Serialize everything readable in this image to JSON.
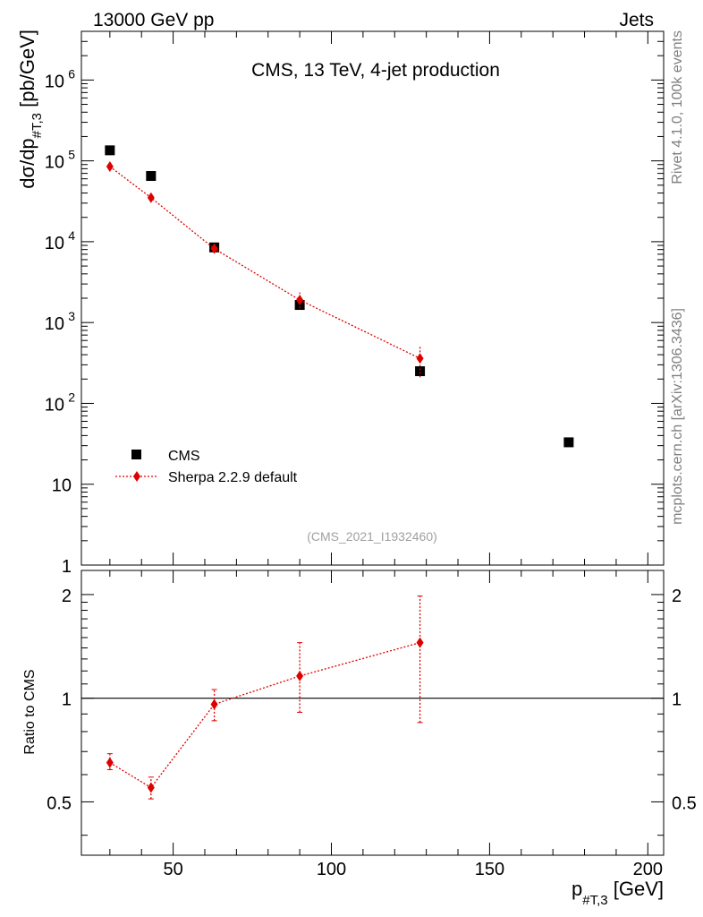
{
  "header": {
    "left": "13000 GeV pp",
    "right": "Jets"
  },
  "side_text": {
    "rivet": "Rivet 4.1.0,  100k events",
    "mcplots": "mcplots.cern.ch [arXiv:1306.3436]"
  },
  "chart_data": {
    "type": "scatter",
    "title": "CMS, 13 TeV, 4-jet production",
    "analysis_tag": "(CMS_2021_I1932460)",
    "xlabel": "p",
    "xlabel_sub": "#T,3",
    "xlabel_unit": "[GeV]",
    "ylabel": "dσ/dp",
    "ylabel_sub": "#T,3",
    "ylabel_unit": "[pb/GeV]",
    "ratio_ylabel": "Ratio to CMS",
    "xlim": [
      21,
      205
    ],
    "ylim": [
      1,
      4000000
    ],
    "ratio_ylim": [
      0.35,
      2.35
    ],
    "x_ticks": [
      50,
      100,
      150,
      200
    ],
    "x_tick_labels": [
      "50",
      "100",
      "150",
      "200"
    ],
    "y_tick_labels": [
      {
        "value": 1,
        "mantissa": "1",
        "exp": ""
      },
      {
        "value": 10,
        "mantissa": "10",
        "exp": ""
      },
      {
        "value": 100,
        "mantissa": "10",
        "exp": "2"
      },
      {
        "value": 1000,
        "mantissa": "10",
        "exp": "3"
      },
      {
        "value": 10000,
        "mantissa": "10",
        "exp": "4"
      },
      {
        "value": 100000,
        "mantissa": "10",
        "exp": "5"
      },
      {
        "value": 1000000,
        "mantissa": "10",
        "exp": "6"
      }
    ],
    "ratio_ticks": [
      {
        "value": 0.5,
        "label": "0.5"
      },
      {
        "value": 1,
        "label": "1"
      },
      {
        "value": 2,
        "label": "2"
      }
    ],
    "legend": [
      {
        "name": "CMS",
        "marker": "square",
        "color": "#000000"
      },
      {
        "name": "Sherpa 2.2.9 default",
        "marker": "diamond",
        "color": "#e00000"
      }
    ],
    "series": [
      {
        "name": "CMS",
        "x": [
          30,
          43,
          63,
          90,
          128,
          175
        ],
        "y": [
          135000,
          65000,
          8500,
          1650,
          250,
          33
        ]
      },
      {
        "name": "Sherpa 2.2.9 default",
        "x": [
          30,
          43,
          63,
          90,
          128
        ],
        "y": [
          85000,
          35000,
          8200,
          1900,
          360
        ],
        "y_err_lo": [
          80000,
          32000,
          7300,
          1500,
          210
        ],
        "y_err_hi": [
          90000,
          38000,
          9100,
          2350,
          500
        ],
        "ratio": [
          0.65,
          0.55,
          0.96,
          1.16,
          1.45
        ],
        "ratio_err_lo": [
          0.62,
          0.51,
          0.86,
          0.91,
          0.85
        ],
        "ratio_err_hi": [
          0.69,
          0.59,
          1.06,
          1.45,
          1.98
        ]
      }
    ]
  }
}
